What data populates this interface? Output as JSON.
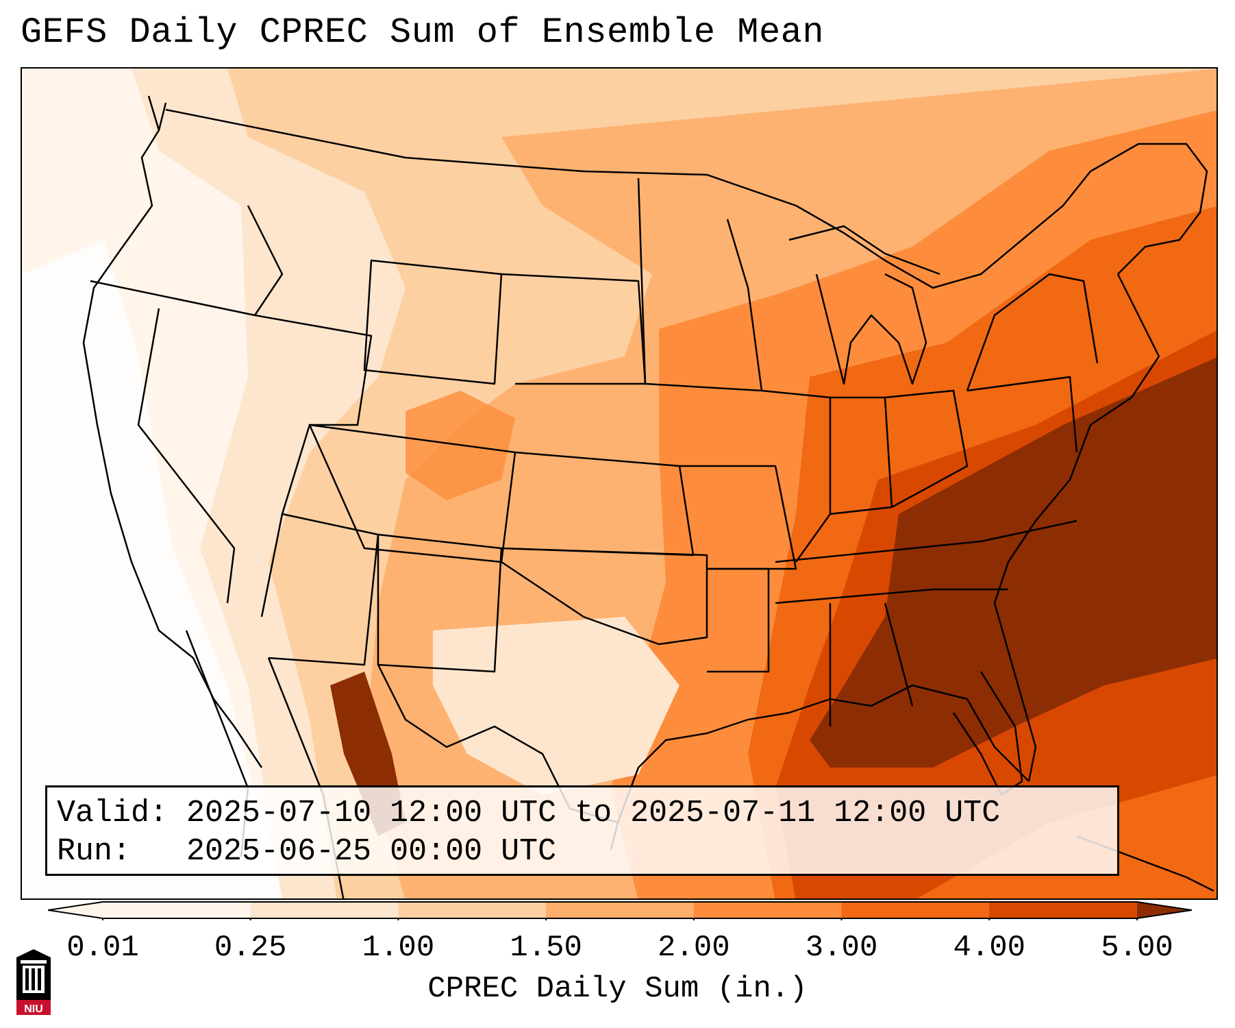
{
  "title": "GEFS Daily CPREC Sum of Ensemble Mean",
  "info": {
    "valid_label": "Valid:",
    "valid_value": "2025-07-10 12:00 UTC to 2025-07-11 12:00 UTC",
    "run_label": "Run:",
    "run_value": "2025-06-25 00:00 UTC"
  },
  "colorbar": {
    "label": "CPREC Daily Sum (in.)",
    "ticks": [
      "0.01",
      "0.25",
      "1.00",
      "1.50",
      "2.00",
      "3.00",
      "4.00",
      "5.00"
    ],
    "colors": [
      "#fff5eb",
      "#fee6ce",
      "#fdd0a2",
      "#fdae6b",
      "#fd8d3c",
      "#f16913",
      "#d94801",
      "#8c2d04"
    ]
  },
  "logo": {
    "text": "NIU"
  }
}
